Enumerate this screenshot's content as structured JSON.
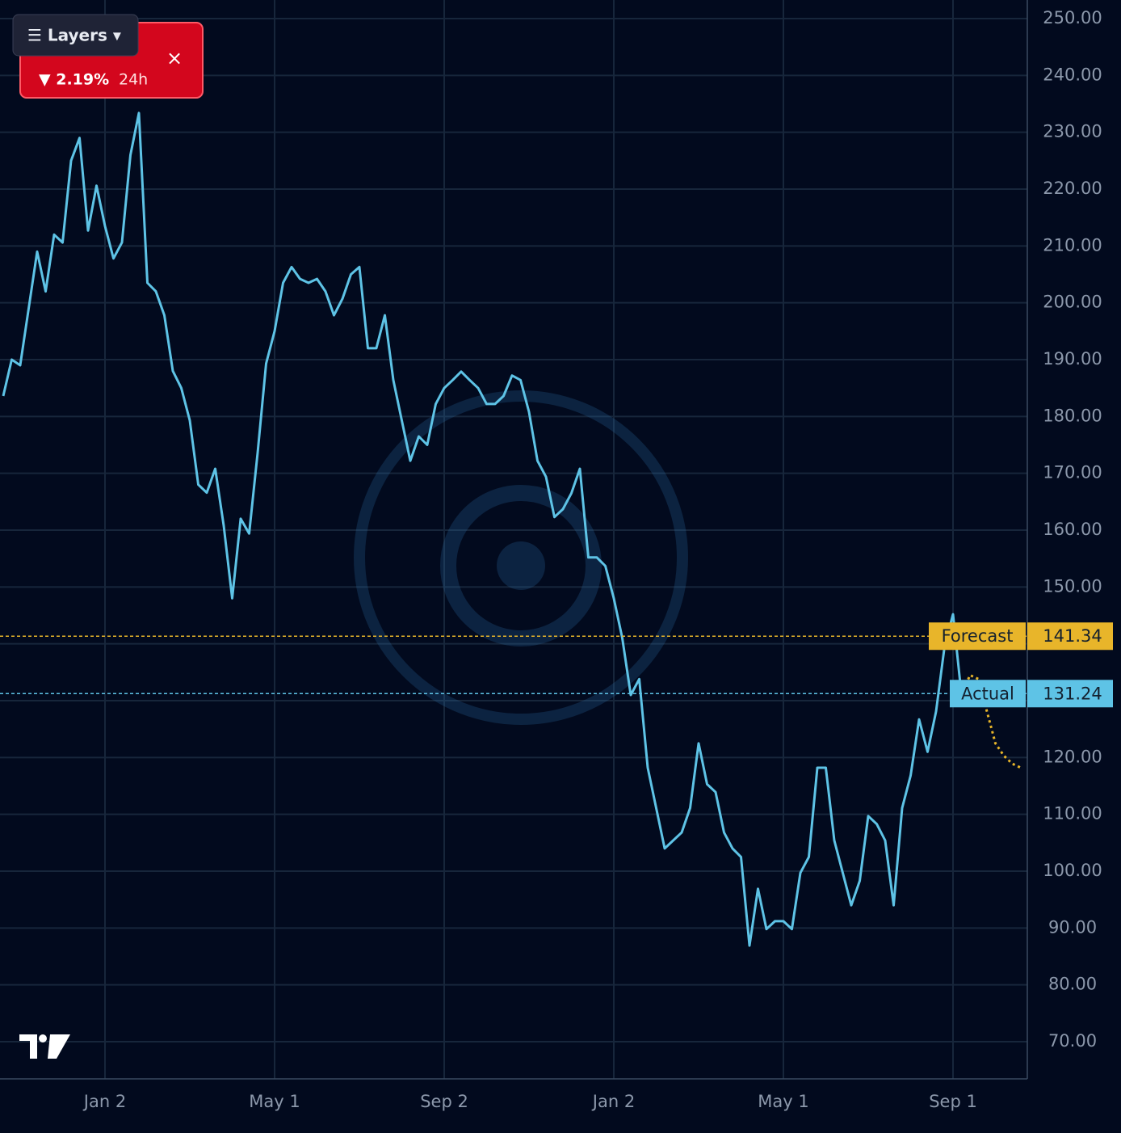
{
  "chart_data": {
    "type": "line",
    "categories": [
      null,
      null,
      null,
      null,
      null,
      null,
      null,
      null,
      null,
      null,
      null,
      null,
      "Jan 2",
      null,
      null,
      null,
      null,
      null,
      null,
      null,
      null,
      null,
      null,
      null,
      null,
      null,
      null,
      null,
      null,
      null,
      null,
      null,
      "May 1",
      null,
      null,
      null,
      null,
      null,
      null,
      null,
      null,
      null,
      null,
      null,
      null,
      null,
      null,
      null,
      null,
      null,
      null,
      null,
      "Sep 2",
      null,
      null,
      null,
      null,
      null,
      null,
      null,
      null,
      null,
      null,
      null,
      null,
      null,
      null,
      null,
      null,
      null,
      null,
      null,
      "Jan 2",
      null,
      null,
      null,
      null,
      null,
      null,
      null,
      null,
      null,
      null,
      null,
      null,
      null,
      null,
      null,
      null,
      null,
      null,
      null,
      "May 1",
      null,
      null,
      null,
      null,
      null,
      null,
      null,
      null,
      null,
      null,
      null,
      null,
      null,
      null,
      null,
      null,
      null,
      null,
      null,
      "Sep 1",
      null,
      null,
      null,
      null,
      null,
      null,
      null,
      null
    ],
    "series": [
      {
        "name": "Actual",
        "color": "#5ec3e6",
        "style": "solid",
        "values": [
          183.6,
          190,
          189,
          199,
          209,
          202,
          212,
          210.6,
          225,
          229,
          212.7,
          220.6,
          213.5,
          207.8,
          210.6,
          226,
          233.4,
          203.5,
          202,
          197.8,
          188,
          185,
          179.3,
          168,
          166.6,
          170.8,
          160.8,
          148,
          162,
          159.4,
          173.6,
          189.3,
          195,
          203.5,
          206.3,
          204.2,
          203.5,
          204.2,
          202,
          197.8,
          200.7,
          205,
          206.3,
          192,
          192,
          197.8,
          186.4,
          179.3,
          172.2,
          176.5,
          175,
          182.2,
          185,
          186.4,
          187.9,
          186.4,
          185,
          182.2,
          182.2,
          183.6,
          187.2,
          186.4,
          180.8,
          172.2,
          169.4,
          162.3,
          163.7,
          166.5,
          170.8,
          155.2,
          155.2,
          153.7,
          148,
          141,
          131,
          133.8,
          118.2,
          111.1,
          104,
          105.4,
          106.8,
          111.1,
          122.5,
          115.3,
          113.9,
          106.8,
          104,
          102.5,
          86.9,
          96.9,
          89.8,
          91.2,
          91.2,
          89.8,
          99.7,
          102.5,
          118.2,
          118.2,
          105.4,
          99.7,
          94,
          98.3,
          109.7,
          108.3,
          105.4,
          94,
          111.1,
          116.8,
          126.7,
          121,
          128.1,
          139.5,
          145.2,
          131,
          null,
          null,
          null,
          null,
          null,
          null,
          null
        ]
      },
      {
        "name": "Forecast",
        "color": "#e8b52a",
        "style": "dotted",
        "values": [
          null,
          null,
          null,
          null,
          null,
          null,
          null,
          null,
          null,
          null,
          null,
          null,
          null,
          null,
          null,
          null,
          null,
          null,
          null,
          null,
          null,
          null,
          null,
          null,
          null,
          null,
          null,
          null,
          null,
          null,
          null,
          null,
          null,
          null,
          null,
          null,
          null,
          null,
          null,
          null,
          null,
          null,
          null,
          null,
          null,
          null,
          null,
          null,
          null,
          null,
          null,
          null,
          null,
          null,
          null,
          null,
          null,
          null,
          null,
          null,
          null,
          null,
          null,
          null,
          null,
          null,
          null,
          null,
          null,
          null,
          null,
          null,
          null,
          null,
          null,
          null,
          null,
          null,
          null,
          null,
          null,
          null,
          null,
          null,
          null,
          null,
          null,
          null,
          null,
          null,
          null,
          null,
          null,
          null,
          null,
          null,
          null,
          null,
          null,
          null,
          null,
          null,
          null,
          null,
          null,
          null,
          null,
          null,
          null,
          null,
          null,
          null,
          null,
          131,
          134.5,
          133.8,
          128.1,
          122.5,
          120.3,
          118.9,
          118.2
        ]
      }
    ],
    "reference_lines": [
      {
        "name": "Forecast",
        "value": 141.34,
        "color": "#e8b52a"
      },
      {
        "name": "Actual",
        "value": 131.24,
        "color": "#5ec3e6"
      }
    ],
    "ylim": [
      63.46,
      253.27
    ],
    "yticks": [
      {
        "value": 70,
        "label": "70.00"
      },
      {
        "value": 80,
        "label": "80.00"
      },
      {
        "value": 90,
        "label": "90.00"
      },
      {
        "value": 100,
        "label": "100.00"
      },
      {
        "value": 110,
        "label": "110.00"
      },
      {
        "value": 120,
        "label": "120.00"
      },
      {
        "value": 130,
        "label": "130.00"
      },
      {
        "value": 140,
        "label": "140.00"
      },
      {
        "value": 150,
        "label": "150.00"
      },
      {
        "value": 160,
        "label": "160.00"
      },
      {
        "value": 170,
        "label": "170.00"
      },
      {
        "value": 180,
        "label": "180.00"
      },
      {
        "value": 190,
        "label": "190.00"
      },
      {
        "value": 200,
        "label": "200.00"
      },
      {
        "value": 210,
        "label": "210.00"
      },
      {
        "value": 220,
        "label": "220.00"
      },
      {
        "value": 230,
        "label": "230.00"
      },
      {
        "value": 240,
        "label": "240.00"
      },
      {
        "value": 250,
        "label": "250.00"
      }
    ],
    "grid": true
  },
  "ui": {
    "change": "▼ 2.19%",
    "period": "24h",
    "close": "×",
    "layers": "☰ Layers ▾"
  }
}
